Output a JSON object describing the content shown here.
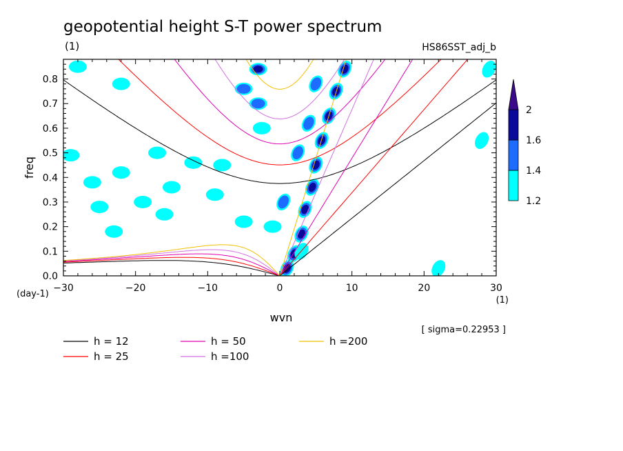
{
  "chart_data": {
    "type": "heatmap",
    "title": "geopotential height S-T power spectrum",
    "subtitle_left": "(1)",
    "subtitle_right": "HS86SST_adj_b",
    "xlabel": "wvn",
    "ylabel": "freq",
    "x_unit": "(1)",
    "y_unit": "(day-1)",
    "xlim": [
      -30,
      30
    ],
    "ylim": [
      0,
      0.88
    ],
    "x_ticks": [
      -30,
      -20,
      -10,
      0,
      10,
      20,
      30
    ],
    "x_tick_labels": [
      "−30",
      "−20",
      "−10",
      "0",
      "10",
      "20",
      "30"
    ],
    "y_ticks": [
      0,
      0.1,
      0.2,
      0.3,
      0.4,
      0.5,
      0.6,
      0.7,
      0.8
    ],
    "y_tick_labels": [
      "0.0",
      "0.1",
      "0.2",
      "0.3",
      "0.4",
      "0.5",
      "0.6",
      "0.7",
      "0.8"
    ],
    "sigma_text": "[ sigma=0.22953 ]",
    "colorbar": {
      "levels": [
        "1.2",
        "1.4",
        "1.6",
        "2"
      ],
      "colors": [
        "#00ffff",
        "#1e6cff",
        "#0a0a9a",
        "#3a0a8a"
      ]
    },
    "dispersion_curves": [
      {
        "label": "h = 12",
        "h": 12,
        "color": "#000000"
      },
      {
        "label": "h = 25",
        "h": 25,
        "color": "#ff0000"
      },
      {
        "label": "h = 50",
        "h": 50,
        "color": "#e000b0"
      },
      {
        "label": "h =100",
        "h": 100,
        "color": "#d070e0"
      },
      {
        "label": "h =200",
        "h": 200,
        "color": "#f0c000"
      }
    ],
    "power_blobs": [
      {
        "x": 1.0,
        "y": 0.03,
        "level": 3
      },
      {
        "x": 2.0,
        "y": 0.09,
        "level": 3
      },
      {
        "x": 3.0,
        "y": 0.17,
        "level": 3
      },
      {
        "x": 3.5,
        "y": 0.27,
        "level": 3
      },
      {
        "x": 4.5,
        "y": 0.36,
        "level": 3
      },
      {
        "x": 5.0,
        "y": 0.45,
        "level": 3
      },
      {
        "x": 5.8,
        "y": 0.55,
        "level": 3
      },
      {
        "x": 6.8,
        "y": 0.65,
        "level": 3
      },
      {
        "x": 7.8,
        "y": 0.75,
        "level": 3
      },
      {
        "x": 9.0,
        "y": 0.84,
        "level": 3
      },
      {
        "x": 2.5,
        "y": 0.5,
        "level": 2
      },
      {
        "x": 4.0,
        "y": 0.62,
        "level": 2
      },
      {
        "x": 5.0,
        "y": 0.78,
        "level": 2
      },
      {
        "x": -3.0,
        "y": 0.84,
        "level": 3
      },
      {
        "x": -5.0,
        "y": 0.76,
        "level": 2
      },
      {
        "x": -3.0,
        "y": 0.7,
        "level": 2
      },
      {
        "x": -2.5,
        "y": 0.6,
        "level": 1
      },
      {
        "x": -8.0,
        "y": 0.45,
        "level": 1
      },
      {
        "x": -12.0,
        "y": 0.46,
        "level": 1
      },
      {
        "x": -17.0,
        "y": 0.5,
        "level": 1
      },
      {
        "x": -22.0,
        "y": 0.42,
        "level": 1
      },
      {
        "x": -26.0,
        "y": 0.38,
        "level": 1
      },
      {
        "x": -15.0,
        "y": 0.36,
        "level": 1
      },
      {
        "x": -19.0,
        "y": 0.3,
        "level": 1
      },
      {
        "x": -25.0,
        "y": 0.28,
        "level": 1
      },
      {
        "x": -16.0,
        "y": 0.25,
        "level": 1
      },
      {
        "x": -5.0,
        "y": 0.22,
        "level": 1
      },
      {
        "x": 0.5,
        "y": 0.3,
        "level": 2
      },
      {
        "x": -1.0,
        "y": 0.2,
        "level": 1
      },
      {
        "x": 3.0,
        "y": 0.1,
        "level": 1
      },
      {
        "x": -23.0,
        "y": 0.18,
        "level": 1
      },
      {
        "x": -9.0,
        "y": 0.33,
        "level": 1
      },
      {
        "x": 22.0,
        "y": 0.03,
        "level": 1
      },
      {
        "x": 28.0,
        "y": 0.55,
        "level": 1
      },
      {
        "x": -29.0,
        "y": 0.49,
        "level": 1
      },
      {
        "x": -28.0,
        "y": 0.85,
        "level": 1
      },
      {
        "x": -22.0,
        "y": 0.78,
        "level": 1
      },
      {
        "x": 29.0,
        "y": 0.84,
        "level": 1
      }
    ]
  }
}
